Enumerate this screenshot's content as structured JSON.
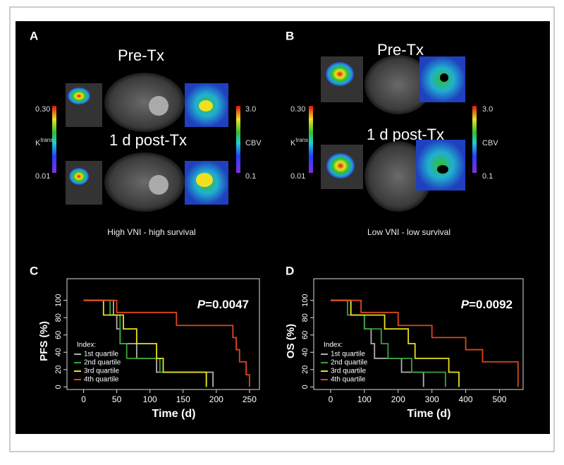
{
  "panels": [
    {
      "label": "A",
      "pre": "Pre-Tx",
      "post": "1 d post-Tx",
      "ktrans_max": "0.30",
      "ktrans_min": "0.01",
      "ktrans_label": "K",
      "ktrans_sup": "trans",
      "cbv_max": "3.0",
      "cbv_min": "0.1",
      "cbv_label": "CBV",
      "caption": "High VNI - high survival"
    },
    {
      "label": "B",
      "pre": "Pre-Tx",
      "post": "1 d post-Tx",
      "ktrans_max": "0.30",
      "ktrans_min": "0.01",
      "ktrans_label": "K",
      "ktrans_sup": "trans",
      "cbv_max": "3.0",
      "cbv_min": "0.1",
      "cbv_label": "CBV",
      "caption": "Low VNI - low survival"
    }
  ],
  "chart_data": [
    {
      "type": "line",
      "panel_label": "C",
      "ylabel": "PFS (%)",
      "xlabel": "Time (d)",
      "p_symbol": "P",
      "p_value": "=0.0047",
      "legend_title": "Index:",
      "xlim": [
        -25,
        265
      ],
      "ylim": [
        -3,
        125
      ],
      "xticks": [
        0,
        50,
        100,
        150,
        200,
        250
      ],
      "yticks": [
        0,
        20,
        40,
        60,
        80,
        100
      ],
      "series": [
        {
          "name": "1st quartile",
          "color": "#b0b0b0",
          "x": [
            0,
            45,
            50,
            55,
            80,
            110,
            195
          ],
          "values": [
            100,
            83,
            67,
            50,
            33,
            17,
            0
          ]
        },
        {
          "name": "2nd quartile",
          "color": "#3aa33a",
          "x": [
            0,
            40,
            55,
            65,
            115,
            185
          ],
          "values": [
            100,
            83,
            50,
            33,
            17,
            0
          ]
        },
        {
          "name": "3rd quartile",
          "color": "#e8e020",
          "x": [
            0,
            30,
            60,
            80,
            110,
            120,
            185
          ],
          "values": [
            100,
            83,
            67,
            50,
            33,
            17,
            0
          ]
        },
        {
          "name": "4th quartile",
          "color": "#e0461c",
          "x": [
            0,
            50,
            140,
            225,
            230,
            235,
            245,
            250
          ],
          "values": [
            100,
            86,
            71,
            57,
            43,
            29,
            14,
            0
          ]
        }
      ]
    },
    {
      "type": "line",
      "panel_label": "D",
      "ylabel": "OS (%)",
      "xlabel": "Time (d)",
      "p_symbol": "P",
      "p_value": "=0.0092",
      "legend_title": "Index:",
      "xlim": [
        -50,
        570
      ],
      "ylim": [
        -3,
        125
      ],
      "xticks": [
        0,
        100,
        200,
        300,
        400,
        500
      ],
      "yticks": [
        0,
        20,
        40,
        60,
        80,
        100
      ],
      "series": [
        {
          "name": "1st quartile",
          "color": "#b0b0b0",
          "x": [
            0,
            60,
            100,
            120,
            130,
            210,
            275
          ],
          "values": [
            100,
            83,
            67,
            50,
            33,
            17,
            0
          ]
        },
        {
          "name": "2nd quartile",
          "color": "#3aa33a",
          "x": [
            0,
            50,
            100,
            150,
            170,
            240,
            340
          ],
          "values": [
            100,
            83,
            67,
            50,
            33,
            17,
            0
          ]
        },
        {
          "name": "3rd quartile",
          "color": "#e8e020",
          "x": [
            0,
            60,
            160,
            230,
            250,
            350,
            380
          ],
          "values": [
            100,
            83,
            67,
            50,
            33,
            17,
            0
          ]
        },
        {
          "name": "4th quartile",
          "color": "#e0461c",
          "x": [
            0,
            90,
            200,
            300,
            400,
            450,
            555
          ],
          "values": [
            100,
            86,
            71,
            57,
            43,
            29,
            0
          ]
        }
      ]
    }
  ]
}
